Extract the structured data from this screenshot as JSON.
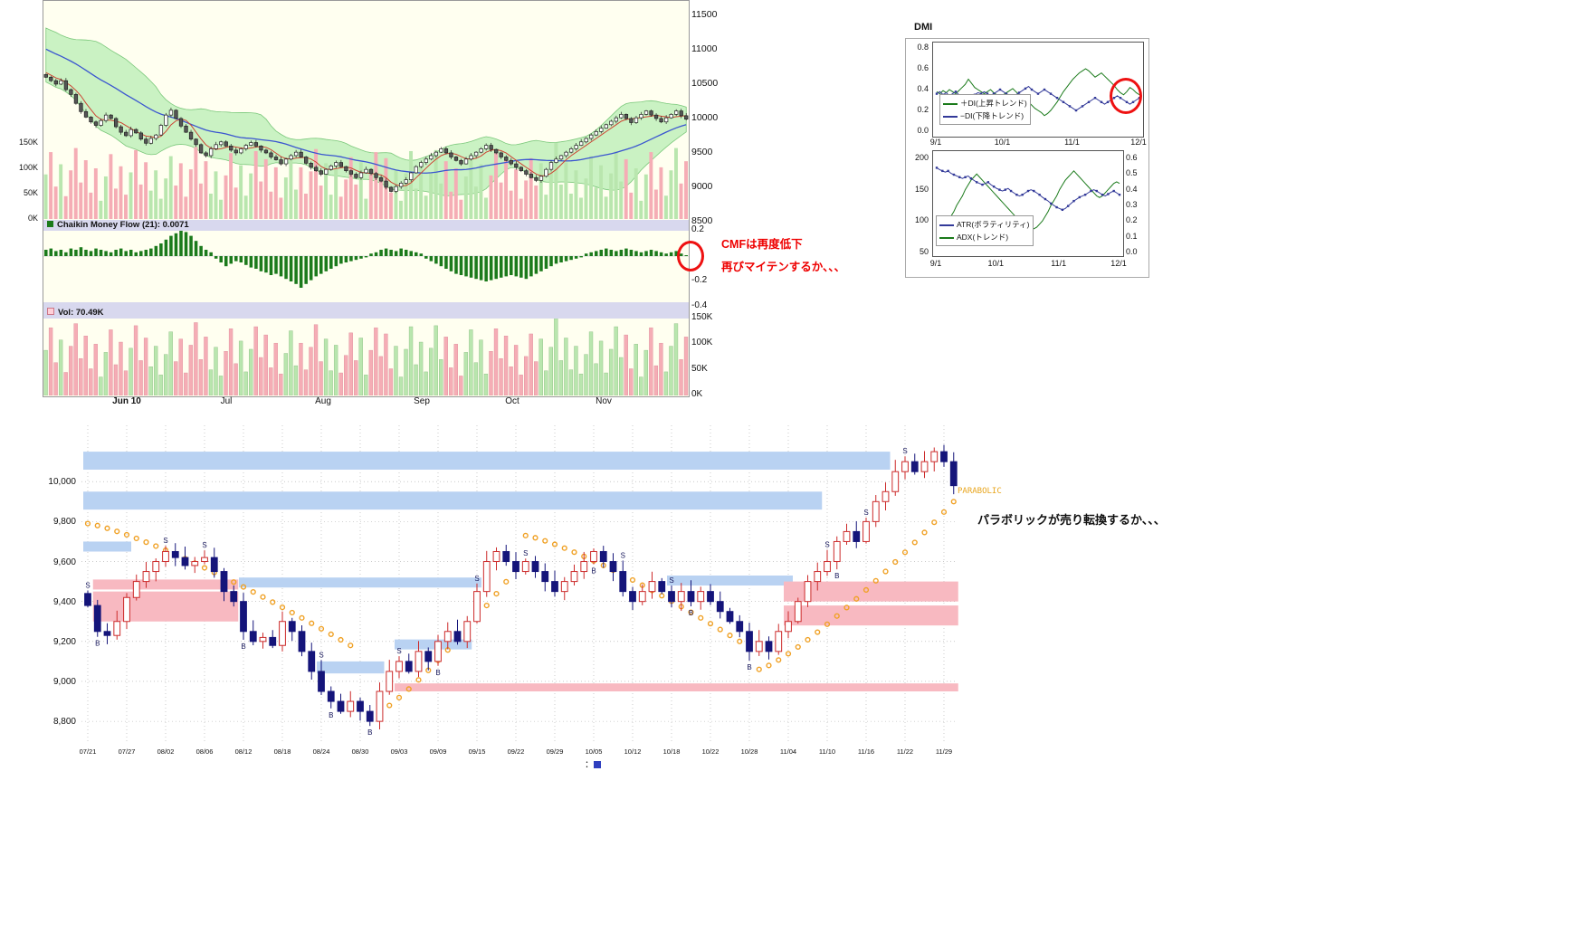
{
  "main_chart": {
    "cmf_square": "■",
    "cmf_label": "Chaikin Money Flow (21): 0.0071",
    "vol_square": "□",
    "vol_label": "Vol: 70.49K"
  },
  "annotations": {
    "cmf_note_line1": "CMFは再度低下",
    "cmf_note_line2": "再びマイテンするか、、、",
    "parabolic_label": "PARABOLIC",
    "parabolic_note": "パラボリックが売り転換するか、、、",
    "bottom_legend_colon": "："
  },
  "dmi_panel": {
    "title": "DMI",
    "di_plus_label": "＋DI(上昇トレンド)",
    "di_minus_label": "−DI(下降トレンド)",
    "atr_label": "ATR(ボラティリティ)",
    "adx_label": "ADX(トレンド)"
  },
  "chart_data": [
    {
      "id": "main_price",
      "type": "candlestick",
      "title": "",
      "ylim": [
        8500,
        11700
      ],
      "y_ticks": [
        11500,
        11000,
        10500,
        10000,
        9500,
        9000,
        8500
      ],
      "x_ticks": [
        "Jun 10",
        "Jul",
        "Aug",
        "Sep",
        "Oct",
        "Nov"
      ],
      "volume_left_ticks": [
        "150K",
        "100K",
        "50K",
        "0K"
      ],
      "overlays": [
        "bollinger-band",
        "ma-short-red",
        "ma-long-blue",
        "volume"
      ],
      "closes": [
        10600,
        10550,
        10500,
        10550,
        10420,
        10350,
        10220,
        10100,
        10020,
        9950,
        9900,
        9970,
        10050,
        10000,
        9880,
        9800,
        9750,
        9840,
        9790,
        9700,
        9640,
        9710,
        9760,
        9900,
        10050,
        10120,
        10000,
        9890,
        9800,
        9700,
        9620,
        9500,
        9460,
        9560,
        9620,
        9660,
        9600,
        9540,
        9500,
        9560,
        9610,
        9650,
        9600,
        9540,
        9500,
        9440,
        9400,
        9340,
        9410,
        9460,
        9510,
        9440,
        9350,
        9290,
        9240,
        9190,
        9260,
        9310,
        9360,
        9300,
        9240,
        9190,
        9140,
        9210,
        9260,
        9200,
        9140,
        9090,
        9000,
        8940,
        9010,
        9060,
        9110,
        9210,
        9300,
        9360,
        9410,
        9460,
        9510,
        9560,
        9500,
        9440,
        9390,
        9340,
        9410,
        9460,
        9510,
        9560,
        9610,
        9550,
        9500,
        9440,
        9390,
        9340,
        9290,
        9240,
        9190,
        9140,
        9100,
        9160,
        9260,
        9360,
        9410,
        9460,
        9510,
        9560,
        9610,
        9660,
        9710,
        9760,
        9810,
        9860,
        9910,
        9960,
        10010,
        10060,
        10000,
        9940,
        10010,
        10060,
        10110,
        10050,
        10000,
        9950,
        10010,
        10060,
        10110,
        10040,
        9990
      ],
      "volumes_k": [
        88,
        132,
        64,
        108,
        45,
        96,
        140,
        72,
        116,
        52,
        100,
        36,
        84,
        128,
        60,
        104,
        48,
        92,
        136,
        68,
        112,
        56,
        96,
        40,
        80,
        124,
        66,
        110,
        44,
        98,
        142,
        70,
        114,
        50,
        94,
        38,
        86,
        130,
        62,
        106,
        46,
        90,
        134,
        74,
        118,
        54,
        102,
        42,
        82,
        126,
        58,
        102,
        50,
        94,
        138,
        66,
        110,
        48,
        98,
        44,
        78,
        122,
        68,
        112,
        40,
        88,
        132,
        76,
        120,
        52,
        96,
        36,
        90,
        134,
        60,
        104,
        46,
        92,
        136,
        70,
        114,
        54,
        100,
        38,
        84,
        128,
        64,
        108,
        42,
        86,
        130,
        72,
        116,
        56,
        98,
        40,
        76,
        120,
        66,
        110,
        48,
        94,
        150,
        68,
        112,
        50,
        96,
        42,
        80,
        124,
        62,
        106,
        44,
        90,
        134,
        74,
        118,
        52,
        100,
        36,
        88,
        132,
        58,
        102,
        46,
        96,
        140,
        70,
        114,
        54,
        98,
        44
      ]
    },
    {
      "id": "cmf",
      "type": "bar",
      "title": "Chaikin Money Flow (21): 0.0071",
      "ylim": [
        -0.45,
        0.25
      ],
      "y_ticks": [
        "0.2",
        "-0.2",
        "-0.4"
      ],
      "last_value": 0.0071,
      "values": [
        0.05,
        0.06,
        0.04,
        0.05,
        0.03,
        0.06,
        0.05,
        0.07,
        0.05,
        0.04,
        0.06,
        0.05,
        0.04,
        0.03,
        0.05,
        0.06,
        0.04,
        0.05,
        0.03,
        0.04,
        0.05,
        0.06,
        0.08,
        0.1,
        0.13,
        0.16,
        0.18,
        0.2,
        0.19,
        0.16,
        0.12,
        0.08,
        0.05,
        0.03,
        -0.02,
        -0.05,
        -0.08,
        -0.06,
        -0.04,
        -0.05,
        -0.07,
        -0.09,
        -0.1,
        -0.12,
        -0.13,
        -0.15,
        -0.14,
        -0.16,
        -0.18,
        -0.2,
        -0.22,
        -0.25,
        -0.22,
        -0.19,
        -0.16,
        -0.14,
        -0.12,
        -0.1,
        -0.08,
        -0.06,
        -0.05,
        -0.04,
        -0.03,
        -0.02,
        -0.01,
        0.02,
        0.03,
        0.05,
        0.06,
        0.05,
        0.04,
        0.06,
        0.05,
        0.04,
        0.03,
        0.02,
        -0.02,
        -0.04,
        -0.06,
        -0.08,
        -0.1,
        -0.12,
        -0.14,
        -0.15,
        -0.16,
        -0.17,
        -0.18,
        -0.19,
        -0.2,
        -0.19,
        -0.18,
        -0.17,
        -0.16,
        -0.15,
        -0.16,
        -0.17,
        -0.18,
        -0.16,
        -0.14,
        -0.12,
        -0.1,
        -0.08,
        -0.06,
        -0.05,
        -0.04,
        -0.03,
        -0.02,
        -0.01,
        0.02,
        0.03,
        0.04,
        0.05,
        0.06,
        0.05,
        0.04,
        0.05,
        0.06,
        0.05,
        0.04,
        0.03,
        0.04,
        0.05,
        0.04,
        0.03,
        0.02,
        0.03,
        0.04,
        0.02,
        0.0071
      ]
    },
    {
      "id": "volume_panel",
      "type": "bar",
      "title": "Vol: 70.49K",
      "last_value_k": 70.49,
      "ylim_k": [
        0,
        155
      ],
      "y_ticks": [
        "150K",
        "100K",
        "50K",
        "0K"
      ]
    },
    {
      "id": "dmi",
      "type": "line",
      "title": "DMI",
      "ylim": [
        0,
        0.8
      ],
      "y_ticks": [
        0.8,
        0.6,
        0.4,
        0.2,
        0.0
      ],
      "x_ticks": [
        "9/1",
        "10/1",
        "11/1",
        "12/1"
      ],
      "series": [
        {
          "name": "＋DI(上昇トレンド)",
          "color": "#1a7a1a",
          "values": [
            0.38,
            0.36,
            0.39,
            0.37,
            0.4,
            0.38,
            0.36,
            0.39,
            0.42,
            0.45,
            0.5,
            0.46,
            0.42,
            0.4,
            0.38,
            0.36,
            0.38,
            0.4,
            0.37,
            0.35,
            0.33,
            0.35,
            0.37,
            0.39,
            0.41,
            0.38,
            0.35,
            0.32,
            0.3,
            0.28,
            0.25,
            0.22,
            0.2,
            0.18,
            0.15,
            0.17,
            0.2,
            0.24,
            0.28,
            0.33,
            0.38,
            0.42,
            0.46,
            0.5,
            0.53,
            0.56,
            0.58,
            0.6,
            0.58,
            0.55,
            0.52,
            0.54,
            0.56,
            0.53,
            0.5,
            0.47,
            0.44,
            0.4,
            0.37,
            0.35,
            0.38,
            0.42,
            0.4,
            0.37,
            0.35
          ]
        },
        {
          "name": "−DI(下降トレンド)",
          "color": "#333a99",
          "values": [
            0.36,
            0.38,
            0.35,
            0.37,
            0.34,
            0.36,
            0.38,
            0.35,
            0.33,
            0.31,
            0.29,
            0.32,
            0.35,
            0.37,
            0.36,
            0.38,
            0.36,
            0.34,
            0.36,
            0.38,
            0.4,
            0.38,
            0.36,
            0.34,
            0.32,
            0.35,
            0.37,
            0.39,
            0.41,
            0.43,
            0.4,
            0.38,
            0.36,
            0.38,
            0.4,
            0.38,
            0.36,
            0.34,
            0.32,
            0.3,
            0.28,
            0.26,
            0.24,
            0.22,
            0.2,
            0.22,
            0.24,
            0.26,
            0.28,
            0.3,
            0.32,
            0.3,
            0.28,
            0.26,
            0.28,
            0.3,
            0.32,
            0.34,
            0.32,
            0.3,
            0.28,
            0.26,
            0.28,
            0.3,
            0.32
          ]
        }
      ]
    },
    {
      "id": "atr_adx",
      "type": "line",
      "ylim_left": [
        50,
        200
      ],
      "ylim_right": [
        0,
        0.6
      ],
      "y_ticks_left": [
        200,
        150,
        100,
        50
      ],
      "y_ticks_right": [
        0.6,
        0.5,
        0.4,
        0.3,
        0.2,
        0.1,
        0.0
      ],
      "x_ticks": [
        "9/1",
        "10/1",
        "11/1",
        "12/1"
      ],
      "series": [
        {
          "name": "ATR(ボラティリティ)",
          "axis": "left",
          "color": "#333a99",
          "values": [
            185,
            182,
            180,
            178,
            180,
            176,
            174,
            172,
            170,
            168,
            170,
            172,
            168,
            165,
            162,
            160,
            158,
            160,
            162,
            158,
            155,
            152,
            150,
            148,
            150,
            152,
            148,
            145,
            142,
            140,
            142,
            145,
            148,
            150,
            148,
            145,
            142,
            138,
            135,
            132,
            128,
            125,
            122,
            120,
            118,
            120,
            124,
            128,
            132,
            135,
            138,
            140,
            142,
            145,
            148,
            150,
            148,
            145,
            142,
            140,
            143,
            146,
            148,
            145,
            142
          ]
        },
        {
          "name": "ADX(トレンド)",
          "axis": "right",
          "color": "#1a7a1a",
          "values": [
            0.1,
            0.12,
            0.15,
            0.18,
            0.2,
            0.23,
            0.26,
            0.3,
            0.33,
            0.36,
            0.4,
            0.43,
            0.46,
            0.48,
            0.5,
            0.48,
            0.46,
            0.44,
            0.42,
            0.4,
            0.38,
            0.36,
            0.34,
            0.32,
            0.3,
            0.28,
            0.26,
            0.24,
            0.22,
            0.2,
            0.19,
            0.18,
            0.17,
            0.16,
            0.15,
            0.16,
            0.18,
            0.2,
            0.23,
            0.26,
            0.3,
            0.33,
            0.36,
            0.4,
            0.43,
            0.46,
            0.48,
            0.5,
            0.52,
            0.5,
            0.48,
            0.46,
            0.44,
            0.42,
            0.4,
            0.38,
            0.36,
            0.35,
            0.36,
            0.38,
            0.4,
            0.42,
            0.44,
            0.45,
            0.44
          ]
        }
      ]
    },
    {
      "id": "parabolic_chart",
      "type": "candlestick",
      "ylim": [
        8700,
        10300
      ],
      "y_ticks": [
        "10,000",
        "9,800",
        "9,600",
        "9,400",
        "9,200",
        "9,000",
        "8,800"
      ],
      "x_ticks": [
        "07/21",
        "07/27",
        "08/02",
        "08/06",
        "08/12",
        "08/18",
        "08/24",
        "08/30",
        "09/03",
        "09/09",
        "09/15",
        "09/22",
        "09/29",
        "10/05",
        "10/12",
        "10/18",
        "10/22",
        "10/28",
        "11/04",
        "11/10",
        "11/16",
        "11/22",
        "11/29"
      ],
      "closes": [
        9380,
        9250,
        9230,
        9300,
        9420,
        9500,
        9550,
        9600,
        9650,
        9620,
        9580,
        9600,
        9620,
        9550,
        9450,
        9400,
        9250,
        9200,
        9220,
        9180,
        9300,
        9250,
        9150,
        9050,
        8950,
        8900,
        8850,
        8900,
        8850,
        8800,
        8950,
        9050,
        9100,
        9050,
        9150,
        9100,
        9200,
        9250,
        9200,
        9300,
        9450,
        9600,
        9650,
        9600,
        9550,
        9600,
        9550,
        9500,
        9450,
        9500,
        9550,
        9600,
        9650,
        9600,
        9550,
        9450,
        9400,
        9450,
        9500,
        9450,
        9400,
        9450,
        9400,
        9450,
        9400,
        9350,
        9300,
        9250,
        9150,
        9200,
        9150,
        9250,
        9300,
        9400,
        9500,
        9550,
        9600,
        9700,
        9750,
        9700,
        9800,
        9900,
        9950,
        10050,
        10100,
        10050,
        10100,
        10150,
        10100,
        9980
      ],
      "markers": [
        {
          "i": 0,
          "t": "S"
        },
        {
          "i": 1,
          "t": "B"
        },
        {
          "i": 8,
          "t": "S"
        },
        {
          "i": 12,
          "t": "S"
        },
        {
          "i": 16,
          "t": "B"
        },
        {
          "i": 24,
          "t": "S"
        },
        {
          "i": 25,
          "t": "B"
        },
        {
          "i": 29,
          "t": "B"
        },
        {
          "i": 32,
          "t": "S"
        },
        {
          "i": 36,
          "t": "B"
        },
        {
          "i": 40,
          "t": "S"
        },
        {
          "i": 45,
          "t": "S"
        },
        {
          "i": 52,
          "t": "B"
        },
        {
          "i": 55,
          "t": "S"
        },
        {
          "i": 60,
          "t": "S"
        },
        {
          "i": 62,
          "t": "B"
        },
        {
          "i": 68,
          "t": "B"
        },
        {
          "i": 76,
          "t": "S"
        },
        {
          "i": 77,
          "t": "B"
        },
        {
          "i": 80,
          "t": "S"
        },
        {
          "i": 84,
          "t": "S"
        }
      ],
      "sar_segments": [
        {
          "from": 0,
          "to": 27,
          "start": 9790,
          "end": 9180,
          "side": "above"
        },
        {
          "from": 29,
          "to": 44,
          "start": 8820,
          "end": 9560,
          "side": "below"
        },
        {
          "from": 45,
          "to": 68,
          "start": 9730,
          "end": 9170,
          "side": "above"
        },
        {
          "from": 69,
          "to": 89,
          "start": 9060,
          "end": 9900,
          "side": "below"
        }
      ],
      "bands": [
        {
          "from": 0,
          "to": 82,
          "top": 10150,
          "bottom": 10060,
          "color": "blue"
        },
        {
          "from": 0,
          "to": 75,
          "top": 9950,
          "bottom": 9860,
          "color": "blue"
        },
        {
          "from": 0,
          "to": 4,
          "top": 9700,
          "bottom": 9650,
          "color": "blue"
        },
        {
          "from": 1,
          "to": 15,
          "top": 9510,
          "bottom": 9460,
          "color": "pink"
        },
        {
          "from": 1,
          "to": 15,
          "top": 9450,
          "bottom": 9300,
          "color": "pink"
        },
        {
          "from": 16,
          "to": 40,
          "top": 9520,
          "bottom": 9470,
          "color": "blue"
        },
        {
          "from": 24,
          "to": 30,
          "top": 9100,
          "bottom": 9040,
          "color": "blue"
        },
        {
          "from": 32,
          "to": 39,
          "top": 9210,
          "bottom": 9160,
          "color": "blue"
        },
        {
          "from": 32,
          "to": 89,
          "top": 8990,
          "bottom": 8950,
          "color": "pink"
        },
        {
          "from": 60,
          "to": 72,
          "top": 9530,
          "bottom": 9480,
          "color": "blue"
        },
        {
          "from": 72,
          "to": 89,
          "top": 9500,
          "bottom": 9400,
          "color": "pink"
        },
        {
          "from": 72,
          "to": 89,
          "top": 9380,
          "bottom": 9280,
          "color": "pink"
        }
      ]
    }
  ]
}
